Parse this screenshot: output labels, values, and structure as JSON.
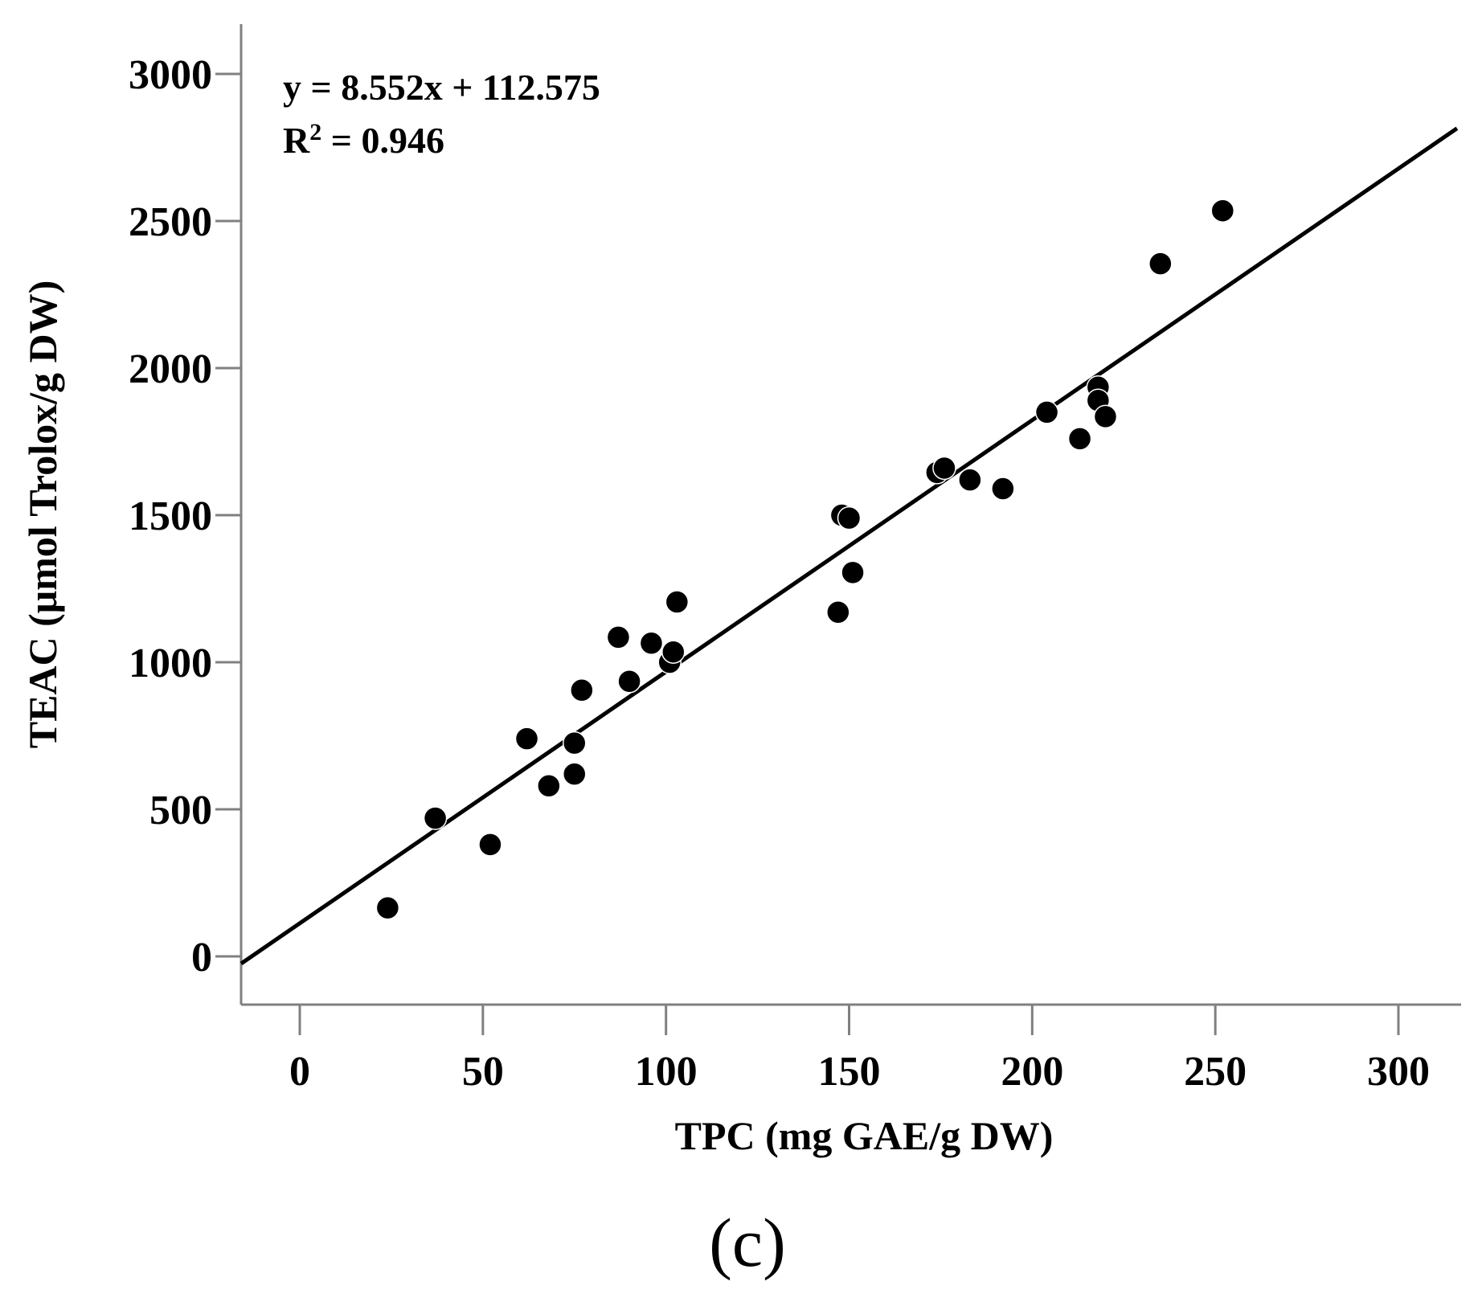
{
  "chart_data": {
    "type": "scatter",
    "title": "",
    "xlabel": "TPC  (mg GAE/g DW)",
    "ylabel": "TEAC (μmol Trolox/g DW)",
    "xlim": [
      -16,
      316
    ],
    "ylim": [
      -160,
      3180
    ],
    "x_ticks": [
      0,
      50,
      100,
      150,
      200,
      250,
      300
    ],
    "y_ticks": [
      0,
      500,
      1000,
      1500,
      2000,
      2500,
      3000
    ],
    "grid": false,
    "points": [
      {
        "x": 24,
        "y": 165
      },
      {
        "x": 37,
        "y": 470
      },
      {
        "x": 52,
        "y": 380
      },
      {
        "x": 62,
        "y": 740
      },
      {
        "x": 68,
        "y": 580
      },
      {
        "x": 75,
        "y": 620
      },
      {
        "x": 75,
        "y": 725
      },
      {
        "x": 77,
        "y": 905
      },
      {
        "x": 87,
        "y": 1085
      },
      {
        "x": 90,
        "y": 935
      },
      {
        "x": 96,
        "y": 1065
      },
      {
        "x": 101,
        "y": 1000
      },
      {
        "x": 102,
        "y": 1035
      },
      {
        "x": 103,
        "y": 1205
      },
      {
        "x": 147,
        "y": 1170
      },
      {
        "x": 148,
        "y": 1500
      },
      {
        "x": 150,
        "y": 1490
      },
      {
        "x": 151,
        "y": 1305
      },
      {
        "x": 174,
        "y": 1645
      },
      {
        "x": 176,
        "y": 1660
      },
      {
        "x": 183,
        "y": 1620
      },
      {
        "x": 192,
        "y": 1590
      },
      {
        "x": 204,
        "y": 1850
      },
      {
        "x": 213,
        "y": 1760
      },
      {
        "x": 218,
        "y": 1935
      },
      {
        "x": 218,
        "y": 1890
      },
      {
        "x": 220,
        "y": 1835
      },
      {
        "x": 235,
        "y": 2355
      },
      {
        "x": 252,
        "y": 2535
      }
    ],
    "trendline": {
      "slope": 8.552,
      "intercept": 112.575
    },
    "annotations": {
      "equation": "y = 8.552x + 112.575",
      "r_squared_label": "R",
      "r_squared_superscript": "2",
      "r_squared_value": " = 0.946"
    },
    "panel_label": "(c)",
    "colors": {
      "marker": "#000000",
      "line": "#000000",
      "axis": "#808080",
      "background": "#ffffff"
    }
  }
}
